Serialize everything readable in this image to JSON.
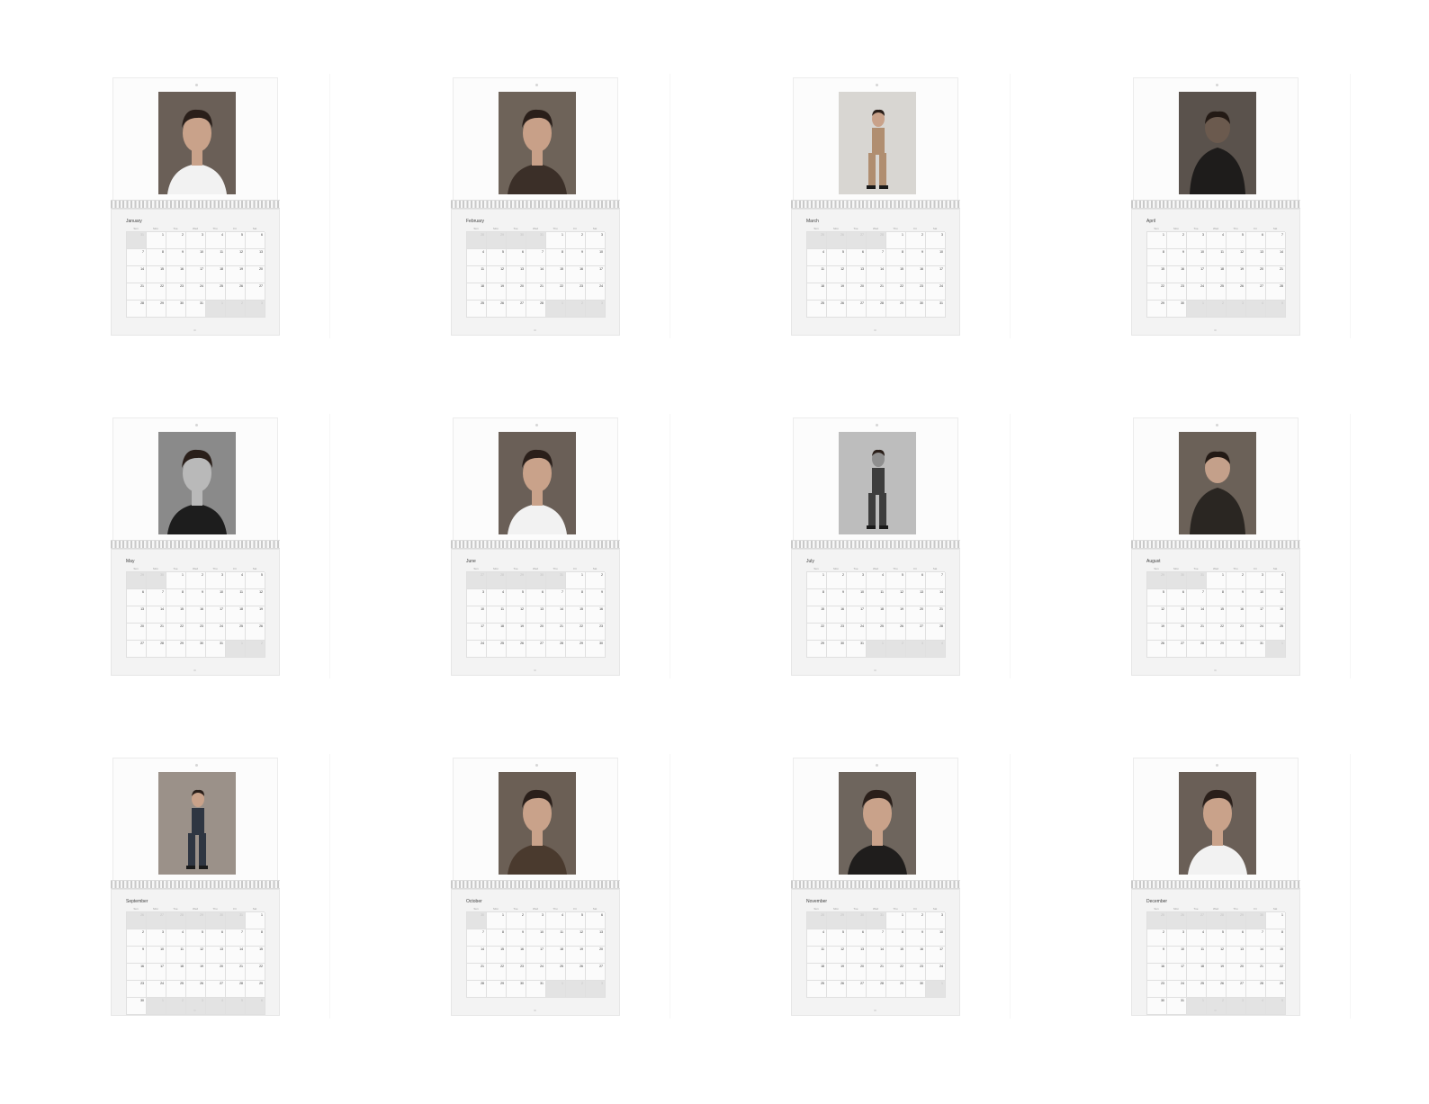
{
  "weekdays": [
    "Sun",
    "Mon",
    "Tue",
    "Wed",
    "Thu",
    "Fri",
    "Sat"
  ],
  "months": [
    {
      "name": "January",
      "start": 1,
      "days": 31,
      "prev_days": 31,
      "photo": {
        "bg": "#6a5f57",
        "skin": "#c9a28a",
        "top": "#f2f2f2",
        "pose": "portrait"
      }
    },
    {
      "name": "February",
      "start": 4,
      "days": 28,
      "prev_days": 31,
      "photo": {
        "bg": "#6e6359",
        "skin": "#c8a088",
        "top": "#3b2f28",
        "pose": "portrait"
      }
    },
    {
      "name": "March",
      "start": 4,
      "days": 31,
      "prev_days": 28,
      "photo": {
        "bg": "#d8d6d2",
        "skin": "#c9a28a",
        "top": "#b08e70",
        "pose": "full"
      }
    },
    {
      "name": "April",
      "start": 0,
      "days": 30,
      "prev_days": 31,
      "photo": {
        "bg": "#5a524c",
        "skin": "#6b5a4e",
        "top": "#1e1c1b",
        "pose": "back"
      }
    },
    {
      "name": "May",
      "start": 2,
      "days": 31,
      "prev_days": 30,
      "photo": {
        "bg": "#8a8a8a",
        "skin": "#b9b9b9",
        "top": "#1d1d1d",
        "pose": "portrait"
      }
    },
    {
      "name": "June",
      "start": 5,
      "days": 30,
      "prev_days": 31,
      "photo": {
        "bg": "#6a5f57",
        "skin": "#c9a28a",
        "top": "#f2f2f2",
        "pose": "portrait"
      }
    },
    {
      "name": "July",
      "start": 0,
      "days": 31,
      "prev_days": 30,
      "photo": {
        "bg": "#bdbdbd",
        "skin": "#8f8f8f",
        "top": "#3d3d3d",
        "pose": "full"
      }
    },
    {
      "name": "August",
      "start": 3,
      "days": 31,
      "prev_days": 31,
      "photo": {
        "bg": "#6b6158",
        "skin": "#c4a08a",
        "top": "#2a2622",
        "pose": "back"
      }
    },
    {
      "name": "September",
      "start": 6,
      "days": 30,
      "prev_days": 31,
      "photo": {
        "bg": "#9b9189",
        "skin": "#c9a28a",
        "top": "#2f3642",
        "pose": "full"
      }
    },
    {
      "name": "October",
      "start": 1,
      "days": 31,
      "prev_days": 30,
      "photo": {
        "bg": "#6b5f55",
        "skin": "#c9a28a",
        "top": "#4a3a2e",
        "pose": "portrait"
      }
    },
    {
      "name": "November",
      "start": 4,
      "days": 30,
      "prev_days": 31,
      "photo": {
        "bg": "#6e655d",
        "skin": "#c9a28a",
        "top": "#1f1d1c",
        "pose": "portrait"
      }
    },
    {
      "name": "December",
      "start": 6,
      "days": 31,
      "prev_days": 30,
      "photo": {
        "bg": "#6a5f57",
        "skin": "#c9a28a",
        "top": "#f2f2f2",
        "pose": "portrait"
      }
    }
  ]
}
